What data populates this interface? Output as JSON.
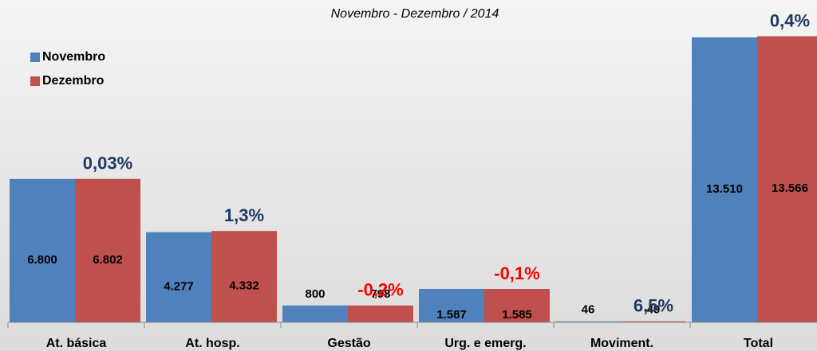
{
  "chart_data": {
    "type": "bar",
    "title": "Novembro - Dezembro / 2014",
    "categories": [
      "At. básica",
      "At. hosp.",
      "Gestão",
      "Urg. e emerg.",
      "Moviment.",
      "Total"
    ],
    "series": [
      {
        "name": "Novembro",
        "color": "#4f81bd",
        "values": [
          6800,
          4277,
          800,
          1587,
          46,
          13510
        ],
        "value_labels": [
          "6.800",
          "4.277",
          "800",
          "1.587",
          "46",
          "13.510"
        ]
      },
      {
        "name": "Dezembro",
        "color": "#c0504d",
        "values": [
          6802,
          4332,
          798,
          1585,
          49,
          13566
        ],
        "value_labels": [
          "6.802",
          "4.332",
          "798",
          "1.585",
          "49",
          "13.566"
        ]
      }
    ],
    "annotations": [
      {
        "text": "0,03%",
        "color": "#1f3864"
      },
      {
        "text": "1,3%",
        "color": "#1f3864"
      },
      {
        "text": "-0,2%",
        "color": "#ff0000"
      },
      {
        "text": "-0,1%",
        "color": "#ff0000"
      },
      {
        "text": "6,5%",
        "color": "#1f3864"
      },
      {
        "text": "0,4%",
        "color": "#1f3864"
      }
    ],
    "ylim": [
      0,
      14000
    ],
    "legend": "top-left"
  }
}
